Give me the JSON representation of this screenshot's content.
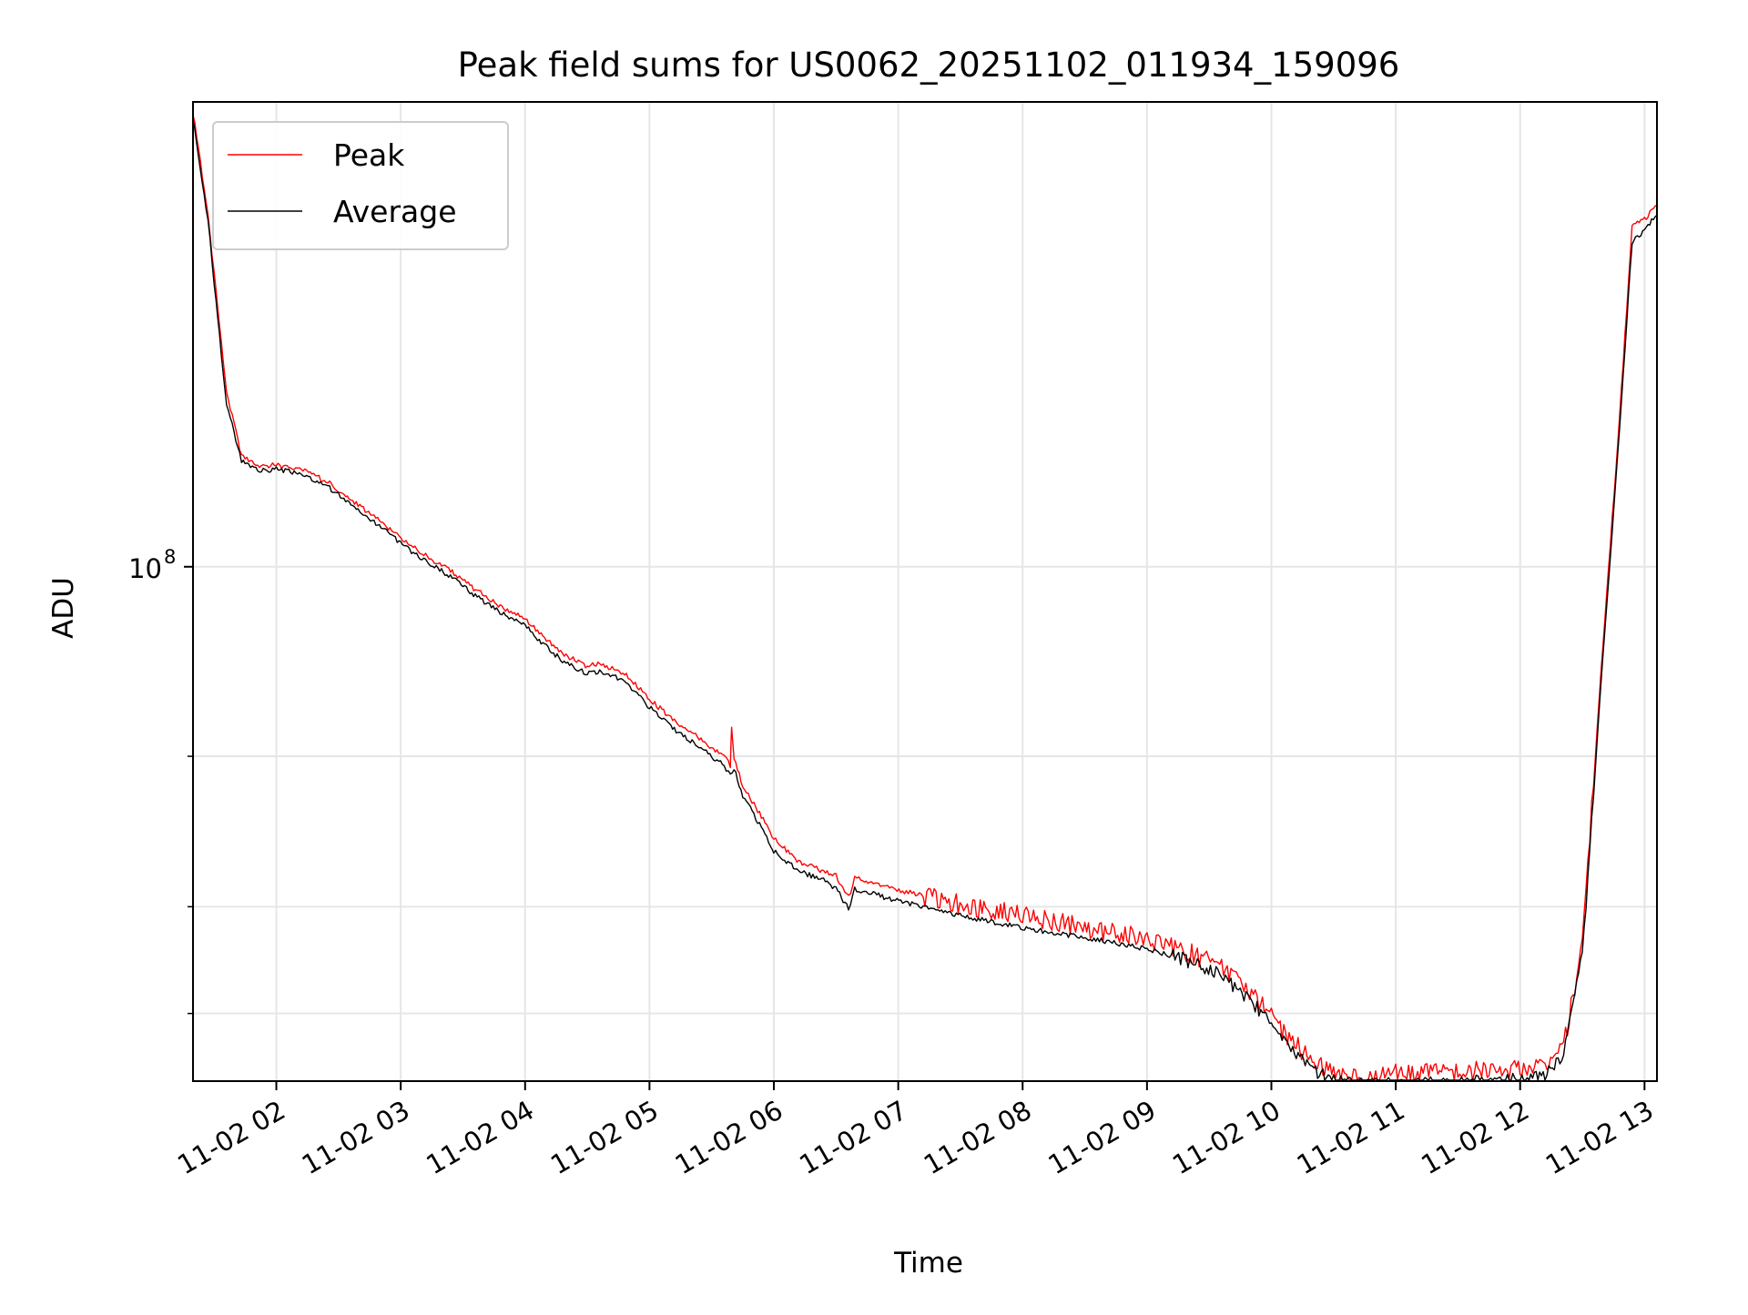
{
  "chart_data": {
    "type": "line",
    "title": "Peak field sums for US0062_20251102_011934_159096",
    "xlabel": "Time",
    "ylabel": "ADU",
    "yscale": "log",
    "grid": true,
    "legend_position": "top-left",
    "x_unit": "hours since 11-02 00:00",
    "xlim": [
      1.33,
      13.1
    ],
    "ylim": [
      25000000,
      350000000
    ],
    "x_ticks": [
      2,
      3,
      4,
      5,
      6,
      7,
      8,
      9,
      10,
      11,
      12,
      13
    ],
    "x_tick_labels": [
      "11-02 02",
      "11-02 03",
      "11-02 04",
      "11-02 05",
      "11-02 06",
      "11-02 07",
      "11-02 08",
      "11-02 09",
      "11-02 10",
      "11-02 11",
      "11-02 12",
      "11-02 13"
    ],
    "y_major_ticks": [
      100000000
    ],
    "y_major_tick_labels": [
      "10",
      "8"
    ],
    "y_minor_ticks": [
      30000000,
      40000000,
      60000000
    ],
    "series": [
      {
        "name": "Peak",
        "color": "#ff0000",
        "x": [
          1.33,
          1.45,
          1.5,
          1.6,
          1.72,
          1.85,
          2.0,
          2.2,
          2.4,
          2.6,
          2.8,
          3.0,
          3.2,
          3.4,
          3.6,
          3.8,
          4.0,
          4.1,
          4.3,
          4.5,
          4.6,
          4.8,
          5.0,
          5.2,
          5.4,
          5.6,
          5.65,
          5.66,
          5.68,
          5.75,
          5.9,
          6.0,
          6.2,
          6.4,
          6.5,
          6.6,
          6.65,
          6.7,
          6.9,
          7.2,
          7.6,
          8.0,
          8.5,
          9.0,
          9.3,
          9.6,
          9.9,
          10.1,
          10.3,
          10.5,
          10.75,
          11.0,
          11.5,
          12.0,
          12.2,
          12.35,
          12.5,
          12.65,
          12.8,
          12.9,
          13.0,
          13.1
        ],
        "y": [
          340000000,
          260000000,
          220000000,
          160000000,
          135000000,
          131000000,
          131500000,
          130000000,
          126000000,
          120000000,
          114000000,
          108000000,
          103000000,
          99000000,
          94000000,
          90000000,
          87000000,
          84000000,
          79000000,
          76500000,
          77000000,
          75000000,
          70000000,
          66000000,
          63000000,
          60000000,
          58500000,
          65000000,
          59500000,
          55500000,
          51000000,
          48000000,
          45200000,
          44000000,
          43500000,
          41000000,
          43200000,
          43000000,
          42200000,
          41200000,
          40000000,
          39000000,
          37800000,
          36600000,
          35500000,
          34000000,
          31000000,
          28500000,
          26600000,
          25500000,
          25300000,
          25500000,
          25600000,
          25800000,
          26000000,
          27500000,
          36000000,
          75000000,
          150000000,
          250000000,
          255000000,
          265000000
        ]
      },
      {
        "name": "Average",
        "color": "#000000",
        "x": [
          1.33,
          1.45,
          1.5,
          1.6,
          1.72,
          1.85,
          2.0,
          2.2,
          2.4,
          2.6,
          2.8,
          3.0,
          3.2,
          3.4,
          3.6,
          3.8,
          4.0,
          4.1,
          4.3,
          4.5,
          4.6,
          4.8,
          5.0,
          5.2,
          5.4,
          5.6,
          5.65,
          5.68,
          5.75,
          5.9,
          6.0,
          6.2,
          6.4,
          6.5,
          6.6,
          6.65,
          6.7,
          6.9,
          7.2,
          7.6,
          8.0,
          8.5,
          9.0,
          9.3,
          9.6,
          9.9,
          10.1,
          10.3,
          10.5,
          10.75,
          11.0,
          11.5,
          12.0,
          12.2,
          12.35,
          12.5,
          12.65,
          12.8,
          12.9,
          13.0,
          13.1
        ],
        "y": [
          335000000,
          255000000,
          215000000,
          155000000,
          133000000,
          129500000,
          130000000,
          128500000,
          124500000,
          118500000,
          112500000,
          106500000,
          101500000,
          97500000,
          92500000,
          88500000,
          85500000,
          82500000,
          77500000,
          75000000,
          75500000,
          73500000,
          68500000,
          64500000,
          61500000,
          58500000,
          57000000,
          58000000,
          54000000,
          49500000,
          46500000,
          44000000,
          43000000,
          42000000,
          39800000,
          42000000,
          41800000,
          41000000,
          40000000,
          38800000,
          37800000,
          36800000,
          35700000,
          34700000,
          33200000,
          30300000,
          27800000,
          26000000,
          25000000,
          24800000,
          24800000,
          24900000,
          25100000,
          25300000,
          26800000,
          35000000,
          73000000,
          145000000,
          240000000,
          248000000,
          258000000
        ]
      }
    ]
  }
}
